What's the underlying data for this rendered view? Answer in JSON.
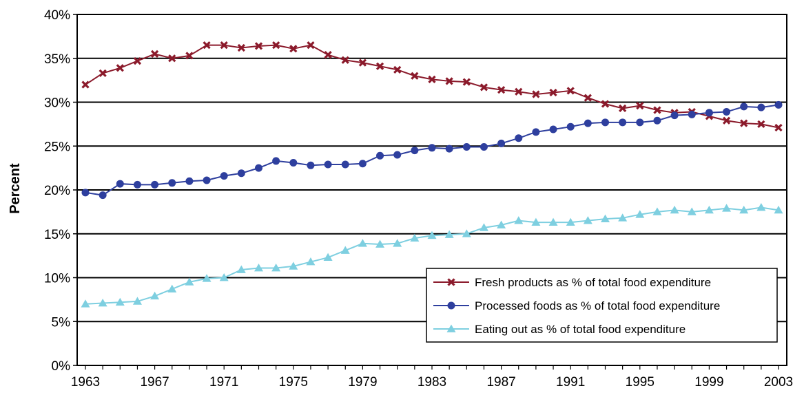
{
  "chart_data": {
    "type": "line",
    "title": "",
    "xlabel": "",
    "ylabel": "Percent",
    "ylim": [
      0,
      40
    ],
    "xlim": [
      1963,
      2003
    ],
    "y_ticks": [
      "0%",
      "5%",
      "10%",
      "15%",
      "20%",
      "25%",
      "30%",
      "35%",
      "40%"
    ],
    "y_tick_values": [
      0,
      5,
      10,
      15,
      20,
      25,
      30,
      35,
      40
    ],
    "x_ticks": [
      "1963",
      "1967",
      "1971",
      "1975",
      "1979",
      "1983",
      "1987",
      "1991",
      "1995",
      "1999",
      "2003"
    ],
    "x_tick_values": [
      1963,
      1967,
      1971,
      1975,
      1979,
      1983,
      1987,
      1991,
      1995,
      1999,
      2003
    ],
    "grid": "horizontal",
    "legend_position": "bottom-right",
    "x": [
      1963,
      1964,
      1965,
      1966,
      1967,
      1968,
      1969,
      1970,
      1971,
      1972,
      1973,
      1974,
      1975,
      1976,
      1977,
      1978,
      1979,
      1980,
      1981,
      1982,
      1983,
      1984,
      1985,
      1986,
      1987,
      1988,
      1989,
      1990,
      1991,
      1992,
      1993,
      1994,
      1995,
      1996,
      1997,
      1998,
      1999,
      2000,
      2001,
      2002,
      2003
    ],
    "series": [
      {
        "name": "Fresh products as % of total food expenditure",
        "color": "#8b1a2b",
        "marker": "x",
        "values": [
          32.0,
          33.3,
          33.9,
          34.7,
          35.5,
          35.0,
          35.3,
          36.5,
          36.5,
          36.2,
          36.4,
          36.5,
          36.1,
          36.5,
          35.4,
          34.8,
          34.5,
          34.1,
          33.7,
          33.0,
          32.6,
          32.4,
          32.3,
          31.7,
          31.4,
          31.2,
          30.9,
          31.1,
          31.3,
          30.5,
          29.8,
          29.3,
          29.6,
          29.1,
          28.8,
          28.9,
          28.4,
          27.9,
          27.6,
          27.5,
          27.1
        ]
      },
      {
        "name": "Processed foods as % of total food expenditure",
        "color": "#2e3f9e",
        "marker": "circle",
        "values": [
          19.7,
          19.4,
          20.7,
          20.6,
          20.6,
          20.8,
          21.0,
          21.1,
          21.6,
          21.9,
          22.5,
          23.3,
          23.1,
          22.8,
          22.9,
          22.9,
          23.0,
          23.9,
          24.0,
          24.5,
          24.8,
          24.7,
          24.9,
          24.9,
          25.3,
          25.9,
          26.6,
          26.9,
          27.2,
          27.6,
          27.7,
          27.7,
          27.7,
          27.9,
          28.5,
          28.6,
          28.8,
          28.9,
          29.5,
          29.4,
          29.7
        ]
      },
      {
        "name": "Eating out as % of total food expenditure",
        "color": "#7ecfe0",
        "marker": "triangle",
        "values": [
          7.0,
          7.1,
          7.2,
          7.3,
          7.9,
          8.7,
          9.5,
          9.9,
          10.0,
          10.9,
          11.1,
          11.1,
          11.3,
          11.8,
          12.3,
          13.1,
          13.9,
          13.8,
          13.9,
          14.5,
          14.8,
          14.9,
          15.0,
          15.7,
          16.0,
          16.5,
          16.3,
          16.3,
          16.3,
          16.5,
          16.7,
          16.8,
          17.2,
          17.5,
          17.7,
          17.5,
          17.7,
          17.9,
          17.7,
          18.0,
          17.7
        ]
      }
    ]
  }
}
